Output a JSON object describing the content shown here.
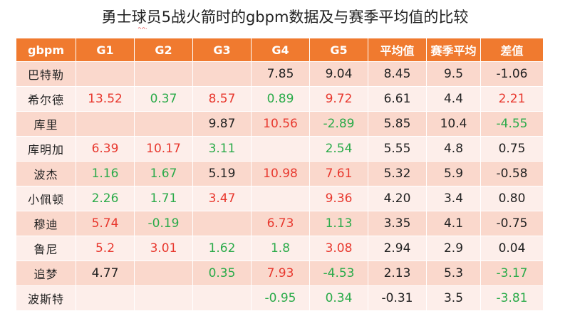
{
  "colors": {
    "header_bg": "#f07a2f",
    "row_odd": "#fad8cc",
    "row_even": "#fdeeea",
    "positive": "#e8382e",
    "negative": "#2bab4a"
  },
  "chart_data": {
    "type": "table",
    "title": "勇士球员5战火箭时的gbpm数据及与赛季平均值的比较",
    "columns": [
      "gbpm",
      "G1",
      "G2",
      "G3",
      "G4",
      "G5",
      "平均值",
      "赛季平均",
      "差值"
    ],
    "rows": [
      {
        "player": "巴特勒",
        "G1": "",
        "G2": "",
        "G3": "",
        "G4": "7.85",
        "G5": "9.04",
        "avg": "8.45",
        "season": "9.5",
        "diff": "-1.06"
      },
      {
        "player": "希尔德",
        "G1": "13.52",
        "G2": "0.37",
        "G3": "8.57",
        "G4": "0.89",
        "G5": "9.72",
        "avg": "6.61",
        "season": "4.4",
        "diff": "2.21"
      },
      {
        "player": "库里",
        "G1": "",
        "G2": "",
        "G3": "9.87",
        "G4": "10.56",
        "G5": "-2.89",
        "avg": "5.85",
        "season": "10.4",
        "diff": "-4.55"
      },
      {
        "player": "库明加",
        "G1": "6.39",
        "G2": "10.17",
        "G3": "3.11",
        "G4": "",
        "G5": "2.54",
        "avg": "5.55",
        "season": "4.8",
        "diff": "0.75"
      },
      {
        "player": "波杰",
        "G1": "1.16",
        "G2": "1.67",
        "G3": "5.19",
        "G4": "10.98",
        "G5": "7.61",
        "avg": "5.32",
        "season": "5.9",
        "diff": "-0.58"
      },
      {
        "player": "小佩顿",
        "G1": "2.26",
        "G2": "1.71",
        "G3": "3.47",
        "G4": "",
        "G5": "9.36",
        "avg": "4.20",
        "season": "3.4",
        "diff": "0.80"
      },
      {
        "player": "穆迪",
        "G1": "5.74",
        "G2": "-0.19",
        "G3": "",
        "G4": "6.73",
        "G5": "1.13",
        "avg": "3.35",
        "season": "4.1",
        "diff": "-0.75"
      },
      {
        "player": "鲁尼",
        "G1": "5.2",
        "G2": "3.01",
        "G3": "1.62",
        "G4": "1.8",
        "G5": "3.08",
        "avg": "2.94",
        "season": "2.9",
        "diff": "0.04"
      },
      {
        "player": "追梦",
        "G1": "4.77",
        "G2": "",
        "G3": "0.35",
        "G4": "7.93",
        "G5": "-4.53",
        "avg": "2.13",
        "season": "5.3",
        "diff": "-3.17"
      },
      {
        "player": "波斯特",
        "G1": "",
        "G2": "",
        "G3": "",
        "G4": "-0.95",
        "G5": "0.34",
        "avg": "-0.31",
        "season": "3.5",
        "diff": "-3.81"
      }
    ],
    "cell_colors": [
      [
        "",
        "",
        "",
        "plain",
        "plain",
        "plain",
        "plain",
        "plain"
      ],
      [
        "pos",
        "neg",
        "pos",
        "neg",
        "pos",
        "plain",
        "plain",
        "pos"
      ],
      [
        "",
        "",
        "plain",
        "pos",
        "neg",
        "plain",
        "plain",
        "neg"
      ],
      [
        "pos",
        "pos",
        "neg",
        "",
        "neg",
        "plain",
        "plain",
        "plain"
      ],
      [
        "neg",
        "neg",
        "plain",
        "pos",
        "pos",
        "plain",
        "plain",
        "plain"
      ],
      [
        "neg",
        "neg",
        "pos",
        "",
        "pos",
        "plain",
        "plain",
        "plain"
      ],
      [
        "pos",
        "neg",
        "",
        "pos",
        "neg",
        "plain",
        "plain",
        "plain"
      ],
      [
        "pos",
        "pos",
        "neg",
        "neg",
        "pos",
        "plain",
        "plain",
        "plain"
      ],
      [
        "plain",
        "",
        "neg",
        "pos",
        "neg",
        "plain",
        "plain",
        "neg"
      ],
      [
        "",
        "",
        "",
        "neg",
        "neg",
        "plain",
        "plain",
        "neg"
      ]
    ]
  }
}
